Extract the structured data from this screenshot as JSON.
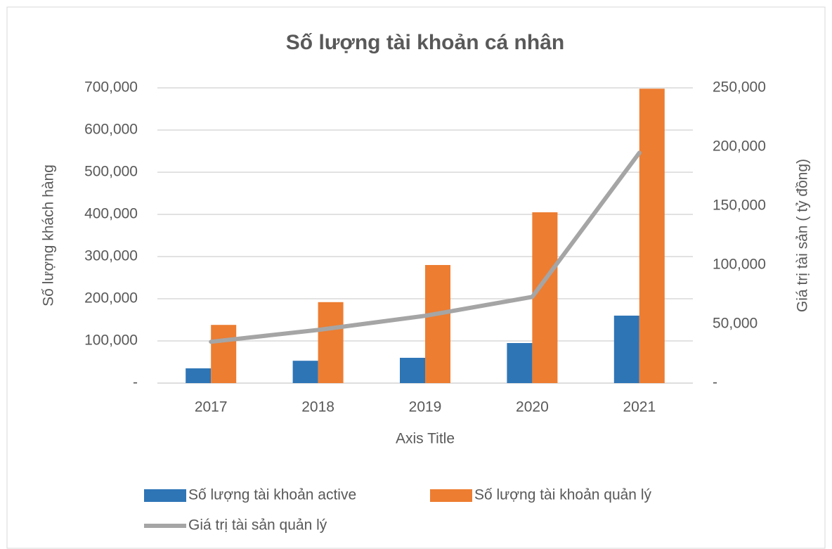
{
  "chart_data": {
    "type": "bar_line",
    "title": "Số lượng tài khoản cá nhân",
    "y_label": "Số lượng khách hàng",
    "y2_label": "Giá trị tài sản ( tỷ đồng)",
    "x_label": "Axis Title",
    "categories": [
      "2017",
      "2018",
      "2019",
      "2020",
      "2021"
    ],
    "series": [
      {
        "name": "Số lượng tài khoản active",
        "type": "bar",
        "color": "#2e75b6",
        "values": [
          35000,
          53000,
          60000,
          95000,
          160000
        ]
      },
      {
        "name": "Số lượng tài khoản quản lý",
        "type": "bar",
        "color": "#ed7d31",
        "values": [
          138000,
          192000,
          280000,
          405000,
          698000
        ]
      },
      {
        "name": "Giá trị tài sản quản lý",
        "type": "line",
        "axis": "y2",
        "color": "#a5a5a5",
        "values": [
          35000,
          45000,
          57000,
          73000,
          195000
        ]
      }
    ],
    "ylim": [
      0,
      700000
    ],
    "yticks": [
      {
        "value": 0,
        "label": "-"
      },
      {
        "value": 100000,
        "label": "100,000"
      },
      {
        "value": 200000,
        "label": "200,000"
      },
      {
        "value": 300000,
        "label": "300,000"
      },
      {
        "value": 400000,
        "label": "400,000"
      },
      {
        "value": 500000,
        "label": "500,000"
      },
      {
        "value": 600000,
        "label": "600,000"
      },
      {
        "value": 700000,
        "label": "700,000"
      }
    ],
    "y2lim": [
      0,
      250000
    ],
    "y2ticks": [
      {
        "value": 0,
        "label": "-"
      },
      {
        "value": 50000,
        "label": "50,000"
      },
      {
        "value": 100000,
        "label": "100,000"
      },
      {
        "value": 150000,
        "label": "150,000"
      },
      {
        "value": 200000,
        "label": "200,000"
      },
      {
        "value": 250000,
        "label": "250,000"
      }
    ],
    "grid": true,
    "legend": "bottom"
  }
}
